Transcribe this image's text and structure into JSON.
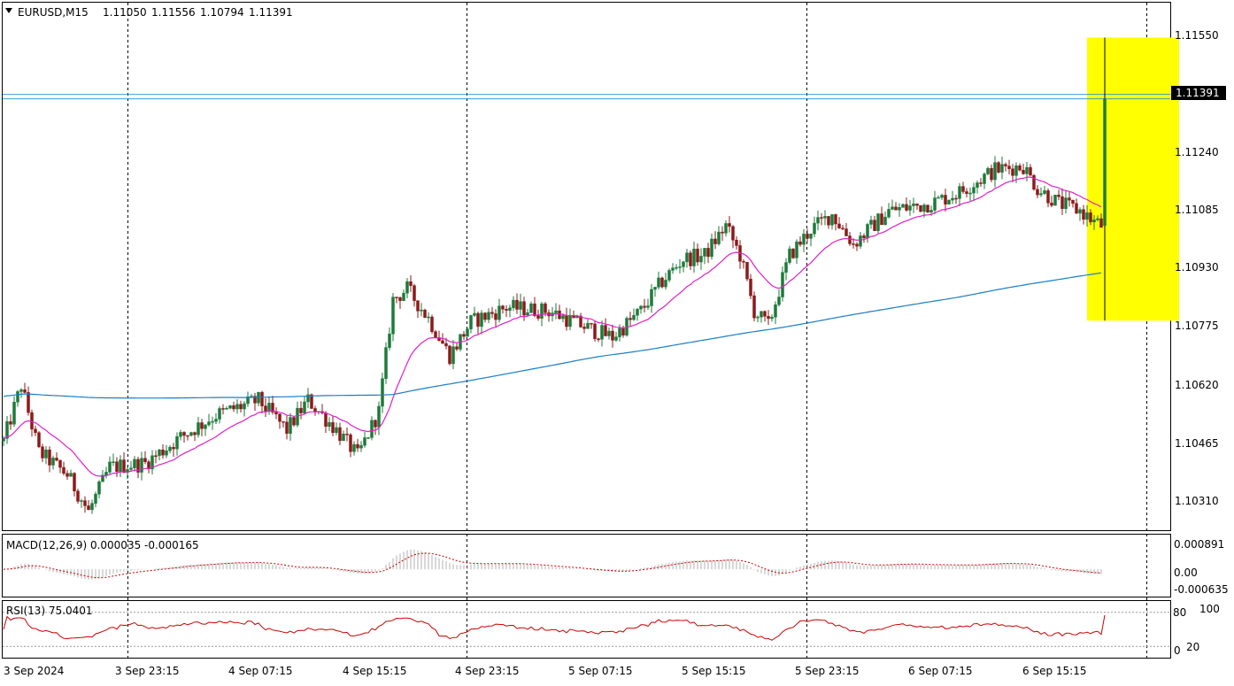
{
  "header": {
    "symbol": "EURUSD,M15",
    "open": "1.11050",
    "high": "1.11556",
    "low": "1.10794",
    "close": "1.11391"
  },
  "price_axis": {
    "current_price_label": "1.11391",
    "ticks": [
      "1.11550",
      "1.11240",
      "1.11085",
      "1.10930",
      "1.10775",
      "1.10620",
      "1.10465",
      "1.10310"
    ]
  },
  "time_axis": {
    "labels": [
      "3 Sep 2024",
      "3 Sep 23:15",
      "4 Sep 07:15",
      "4 Sep 15:15",
      "4 Sep 23:15",
      "5 Sep 07:15",
      "5 Sep 15:15",
      "5 Sep 23:15",
      "6 Sep 07:15",
      "6 Sep 15:15"
    ]
  },
  "macd": {
    "label": "MACD(12,26,9) 0.000035 -0.000165",
    "ticks": [
      "0.000891",
      "0.00",
      "-0.000635"
    ]
  },
  "rsi": {
    "label": "RSI(13) 75.0401",
    "ticks": [
      "100",
      "80",
      "20",
      "0"
    ]
  },
  "colors": {
    "bull_candle": "#1d7a3a",
    "bear_candle": "#8b1a1a",
    "ma_fast": "#e020c8",
    "ma_slow": "#1a7fc9",
    "highlight": "#ffff00",
    "macd_signal": "#cc0000",
    "rsi_line": "#cc0000",
    "price_line": "#1a8fd0"
  },
  "chart_data": [
    {
      "type": "candlestick",
      "symbol": "EURUSD",
      "timeframe": "M15",
      "y_range": [
        1.1023,
        1.1165
      ],
      "horizontal_line": 1.11391,
      "highlight_box": {
        "price_top": 1.11556,
        "price_bottom": 1.10794
      },
      "anchors": [
        {
          "i": 0,
          "p": 1.1047
        },
        {
          "i": 5,
          "p": 1.1062
        },
        {
          "i": 10,
          "p": 1.1044
        },
        {
          "i": 18,
          "p": 1.1038
        },
        {
          "i": 24,
          "p": 1.1028
        },
        {
          "i": 30,
          "p": 1.104
        },
        {
          "i": 40,
          "p": 1.1041
        },
        {
          "i": 50,
          "p": 1.1048
        },
        {
          "i": 60,
          "p": 1.1054
        },
        {
          "i": 72,
          "p": 1.1058
        },
        {
          "i": 80,
          "p": 1.105
        },
        {
          "i": 86,
          "p": 1.1058
        },
        {
          "i": 94,
          "p": 1.105
        },
        {
          "i": 100,
          "p": 1.1043
        },
        {
          "i": 106,
          "p": 1.1055
        },
        {
          "i": 110,
          "p": 1.1085
        },
        {
          "i": 114,
          "p": 1.1088
        },
        {
          "i": 120,
          "p": 1.108
        },
        {
          "i": 126,
          "p": 1.107
        },
        {
          "i": 132,
          "p": 1.1079
        },
        {
          "i": 142,
          "p": 1.1083
        },
        {
          "i": 154,
          "p": 1.1082
        },
        {
          "i": 166,
          "p": 1.1077
        },
        {
          "i": 172,
          "p": 1.1075
        },
        {
          "i": 180,
          "p": 1.1082
        },
        {
          "i": 186,
          "p": 1.109
        },
        {
          "i": 192,
          "p": 1.1096
        },
        {
          "i": 198,
          "p": 1.1097
        },
        {
          "i": 204,
          "p": 1.1105
        },
        {
          "i": 208,
          "p": 1.1097
        },
        {
          "i": 212,
          "p": 1.1082
        },
        {
          "i": 216,
          "p": 1.1078
        },
        {
          "i": 222,
          "p": 1.1097
        },
        {
          "i": 228,
          "p": 1.1104
        },
        {
          "i": 234,
          "p": 1.1108
        },
        {
          "i": 240,
          "p": 1.11
        },
        {
          "i": 250,
          "p": 1.1109
        },
        {
          "i": 262,
          "p": 1.1111
        },
        {
          "i": 270,
          "p": 1.1114
        },
        {
          "i": 280,
          "p": 1.112
        },
        {
          "i": 288,
          "p": 1.1121
        },
        {
          "i": 292,
          "p": 1.1115
        },
        {
          "i": 298,
          "p": 1.1111
        },
        {
          "i": 304,
          "p": 1.1109
        },
        {
          "i": 308,
          "p": 1.1106
        },
        {
          "i": 310,
          "p": 1.1105
        }
      ],
      "last_candle": {
        "open": 1.1105,
        "high": 1.11556,
        "low": 1.10794,
        "close": 1.11391
      }
    },
    {
      "type": "line",
      "name": "MACD(12,26,9)",
      "values_text": [
        "0.000035",
        "-0.000165"
      ],
      "y_range": [
        -0.00075,
        0.00095
      ]
    },
    {
      "type": "line",
      "name": "RSI(13)",
      "last_value": 75.0401,
      "y_range": [
        0,
        100
      ],
      "levels": [
        80,
        20
      ]
    }
  ]
}
